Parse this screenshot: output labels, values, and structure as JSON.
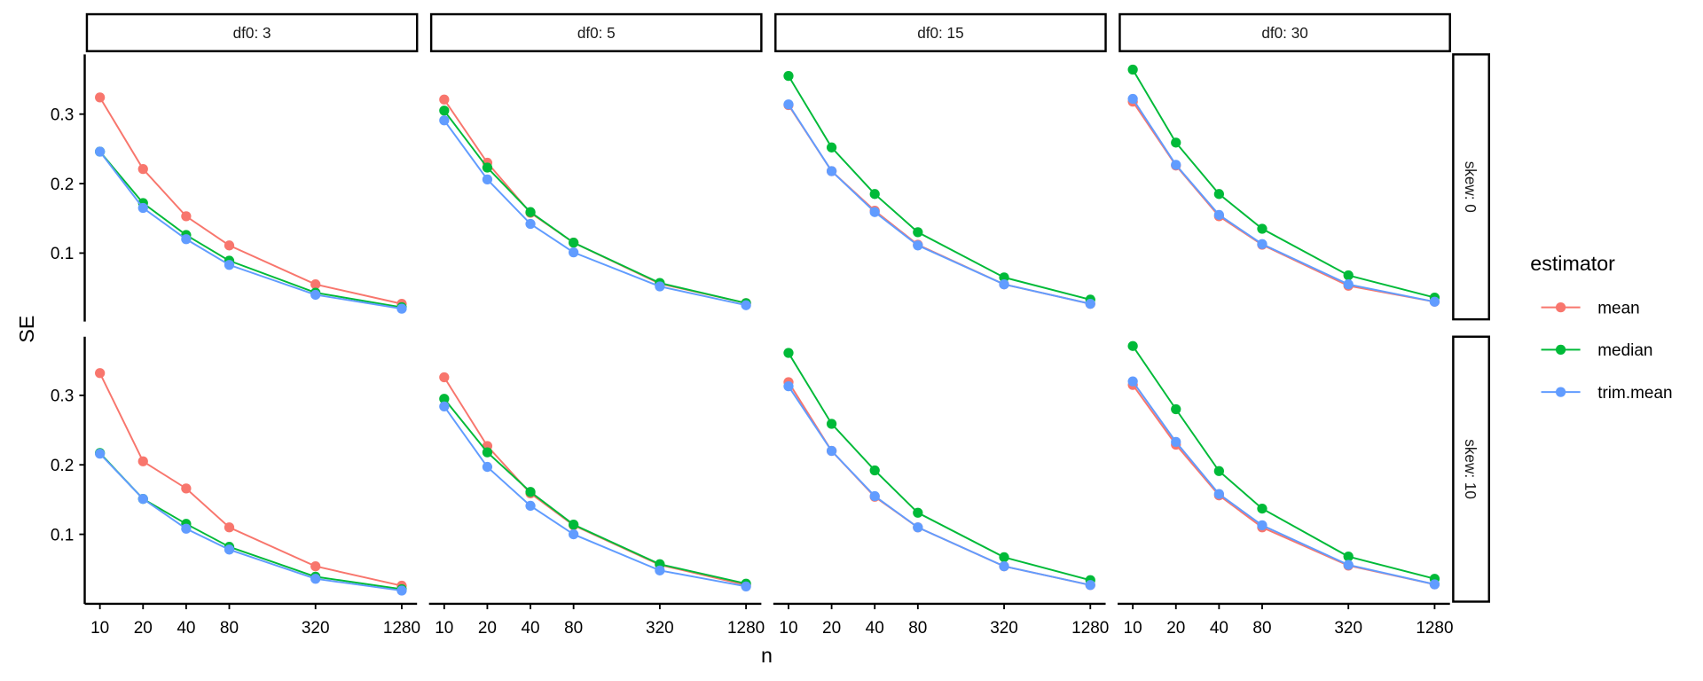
{
  "chart_data": {
    "type": "line",
    "title": "",
    "xlabel": "n",
    "ylabel": "SE",
    "x": [
      10,
      20,
      40,
      80,
      320,
      1280
    ],
    "x_tick_labels": [
      "10",
      "20",
      "40",
      "80",
      "320",
      "1280"
    ],
    "x_scale": "log",
    "y_ticks": [
      0.1,
      0.2,
      0.3
    ],
    "y_tick_labels": [
      "0.1",
      "0.2",
      "0.3"
    ],
    "ylim": [
      0.015,
      0.38
    ],
    "grid": false,
    "facet_cols": [
      "df0: 3",
      "df0: 5",
      "df0: 15",
      "df0: 30"
    ],
    "facet_rows": [
      "skew: 0",
      "skew: 10"
    ],
    "legend": {
      "title": "estimator",
      "placement": "right",
      "entries": [
        "mean",
        "median",
        "trim.mean"
      ]
    },
    "colors": {
      "mean": "#F8766D",
      "median": "#00BA38",
      "trim.mean": "#619CFF"
    },
    "panels": [
      {
        "col": 0,
        "row": 0,
        "series": [
          {
            "name": "mean",
            "values": [
              0.324,
              0.221,
              0.153,
              0.111,
              0.055,
              0.027
            ]
          },
          {
            "name": "median",
            "values": [
              0.246,
              0.172,
              0.126,
              0.089,
              0.043,
              0.022
            ]
          },
          {
            "name": "trim.mean",
            "values": [
              0.246,
              0.165,
              0.12,
              0.083,
              0.04,
              0.02
            ]
          }
        ]
      },
      {
        "col": 1,
        "row": 0,
        "series": [
          {
            "name": "mean",
            "values": [
              0.321,
              0.23,
              0.158,
              0.115,
              0.056,
              0.028
            ]
          },
          {
            "name": "median",
            "values": [
              0.305,
              0.223,
              0.159,
              0.115,
              0.057,
              0.028
            ]
          },
          {
            "name": "trim.mean",
            "values": [
              0.291,
              0.206,
              0.142,
              0.101,
              0.052,
              0.025
            ]
          }
        ]
      },
      {
        "col": 2,
        "row": 0,
        "series": [
          {
            "name": "mean",
            "values": [
              0.313,
              0.218,
              0.161,
              0.112,
              0.055,
              0.027
            ]
          },
          {
            "name": "median",
            "values": [
              0.355,
              0.252,
              0.185,
              0.13,
              0.065,
              0.033
            ]
          },
          {
            "name": "trim.mean",
            "values": [
              0.314,
              0.218,
              0.159,
              0.111,
              0.055,
              0.027
            ]
          }
        ]
      },
      {
        "col": 3,
        "row": 0,
        "series": [
          {
            "name": "mean",
            "values": [
              0.318,
              0.226,
              0.153,
              0.112,
              0.053,
              0.03
            ]
          },
          {
            "name": "median",
            "values": [
              0.364,
              0.259,
              0.185,
              0.135,
              0.068,
              0.036
            ]
          },
          {
            "name": "trim.mean",
            "values": [
              0.322,
              0.227,
              0.155,
              0.113,
              0.055,
              0.03
            ]
          }
        ]
      },
      {
        "col": 0,
        "row": 1,
        "series": [
          {
            "name": "mean",
            "values": [
              0.332,
              0.205,
              0.166,
              0.11,
              0.054,
              0.026
            ]
          },
          {
            "name": "median",
            "values": [
              0.217,
              0.151,
              0.115,
              0.082,
              0.039,
              0.021
            ]
          },
          {
            "name": "trim.mean",
            "values": [
              0.216,
              0.151,
              0.108,
              0.078,
              0.036,
              0.019
            ]
          }
        ]
      },
      {
        "col": 1,
        "row": 1,
        "series": [
          {
            "name": "mean",
            "values": [
              0.326,
              0.227,
              0.159,
              0.113,
              0.056,
              0.027
            ]
          },
          {
            "name": "median",
            "values": [
              0.295,
              0.218,
              0.161,
              0.114,
              0.057,
              0.029
            ]
          },
          {
            "name": "trim.mean",
            "values": [
              0.284,
              0.197,
              0.141,
              0.1,
              0.048,
              0.025
            ]
          }
        ]
      },
      {
        "col": 2,
        "row": 1,
        "series": [
          {
            "name": "mean",
            "values": [
              0.319,
              0.22,
              0.154,
              0.11,
              0.054,
              0.027
            ]
          },
          {
            "name": "median",
            "values": [
              0.361,
              0.259,
              0.192,
              0.131,
              0.067,
              0.034
            ]
          },
          {
            "name": "trim.mean",
            "values": [
              0.313,
              0.22,
              0.155,
              0.11,
              0.054,
              0.027
            ]
          }
        ]
      },
      {
        "col": 3,
        "row": 1,
        "series": [
          {
            "name": "mean",
            "values": [
              0.315,
              0.229,
              0.156,
              0.11,
              0.055,
              0.028
            ]
          },
          {
            "name": "median",
            "values": [
              0.371,
              0.28,
              0.191,
              0.137,
              0.068,
              0.036
            ]
          },
          {
            "name": "trim.mean",
            "values": [
              0.32,
              0.233,
              0.158,
              0.113,
              0.056,
              0.028
            ]
          }
        ]
      }
    ]
  }
}
